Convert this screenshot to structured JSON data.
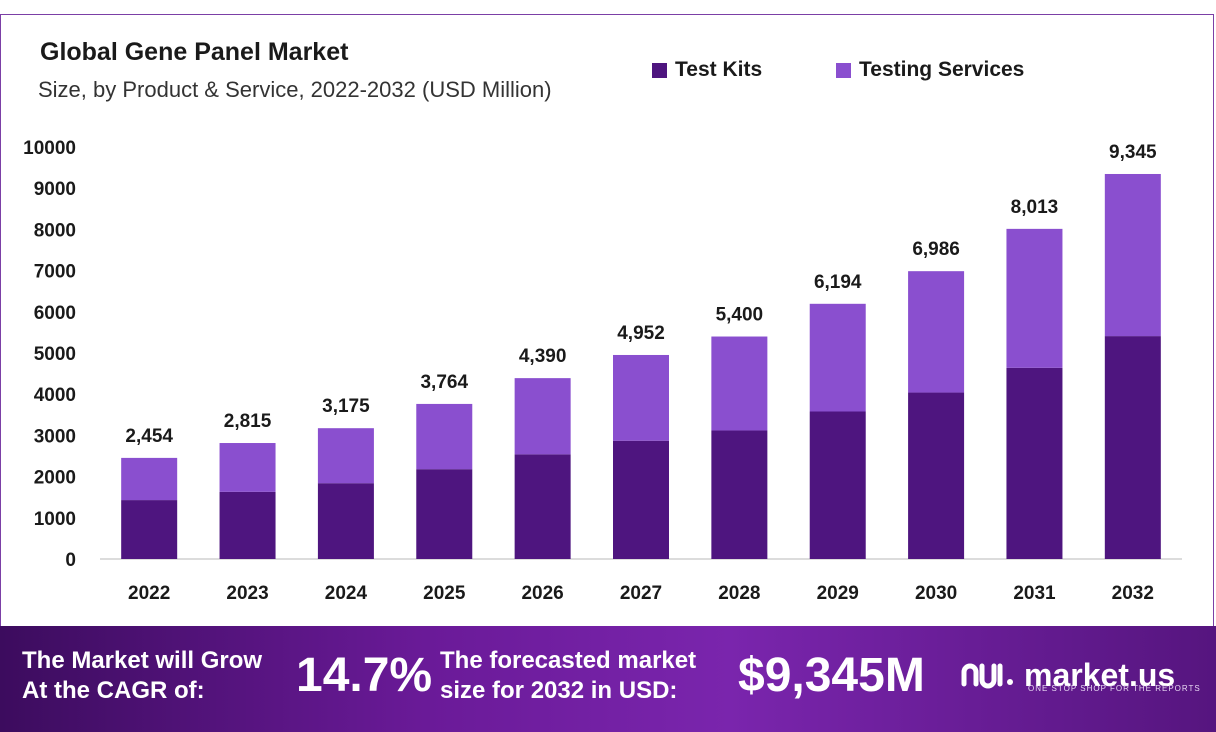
{
  "title": "Global Gene Panel Market",
  "subtitle": "Size, by Product & Service, 2022-2032 (USD Million)",
  "colors": {
    "test_kits": "#4e157f",
    "testing_services": "#8a4fcf",
    "axis": "#d0d0d0"
  },
  "chart_data": {
    "type": "bar",
    "stacked": true,
    "categories": [
      "2022",
      "2023",
      "2024",
      "2025",
      "2026",
      "2027",
      "2028",
      "2029",
      "2030",
      "2031",
      "2032"
    ],
    "series": [
      {
        "name": "Test Kits",
        "values": [
          1430,
          1630,
          1840,
          2180,
          2540,
          2870,
          3120,
          3580,
          4040,
          4640,
          5410
        ]
      },
      {
        "name": "Testing Services",
        "values": [
          1024,
          1185,
          1335,
          1584,
          1850,
          2082,
          2280,
          2614,
          2946,
          3373,
          3935
        ]
      }
    ],
    "totals": [
      2454,
      2815,
      3175,
      3764,
      4390,
      4952,
      5400,
      6194,
      6986,
      8013,
      9345
    ],
    "total_labels": [
      "2,454",
      "2,815",
      "3,175",
      "3,764",
      "4,390",
      "4,952",
      "5,400",
      "6,194",
      "6,986",
      "8,013",
      "9,345"
    ],
    "ylim": [
      0,
      10000
    ],
    "yticks": [
      0,
      1000,
      2000,
      3000,
      4000,
      5000,
      6000,
      7000,
      8000,
      9000,
      10000
    ],
    "legend_position": "top-right",
    "grid": false
  },
  "banner": {
    "cagr_text_line1": "The Market will Grow",
    "cagr_text_line2": "At the CAGR of:",
    "cagr_value": "14.7%",
    "forecast_text_line1": "The forecasted market",
    "forecast_text_line2": "size for 2032 in USD:",
    "forecast_value": "$9,345M",
    "brand_name": "market.us",
    "brand_tagline": "ONE STOP SHOP FOR THE REPORTS"
  }
}
